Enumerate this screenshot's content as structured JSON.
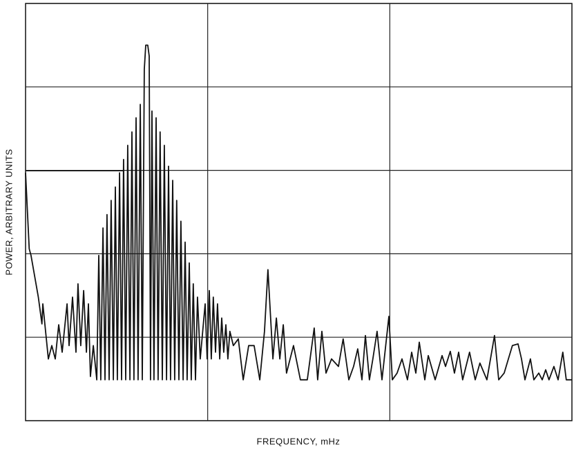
{
  "chart_data": {
    "type": "line",
    "xlabel": "FREQUENCY, mHz",
    "ylabel": "POWER, ARBITRARY UNITS",
    "xlim": [
      0,
      3
    ],
    "ylim": [
      0,
      5
    ],
    "xticks": [
      0,
      1,
      2,
      3
    ],
    "yticks": [
      0,
      1,
      2,
      3,
      4,
      5
    ],
    "grid": true,
    "color": "#111",
    "x": [
      0,
      0.02,
      0.03,
      0.05,
      0.07,
      0.09,
      0.095,
      0.125,
      0.144,
      0.163,
      0.182,
      0.201,
      0.228,
      0.239,
      0.258,
      0.277,
      0.288,
      0.303,
      0.319,
      0.334,
      0.345,
      0.356,
      0.372,
      0.391,
      0.402,
      0.413,
      0.425,
      0.436,
      0.447,
      0.459,
      0.47,
      0.482,
      0.493,
      0.504,
      0.516,
      0.527,
      0.538,
      0.55,
      0.561,
      0.573,
      0.584,
      0.595,
      0.607,
      0.618,
      0.63,
      0.641,
      0.652,
      0.66,
      0.671,
      0.679,
      0.686,
      0.694,
      0.705,
      0.717,
      0.728,
      0.739,
      0.751,
      0.762,
      0.774,
      0.785,
      0.796,
      0.808,
      0.819,
      0.83,
      0.842,
      0.853,
      0.865,
      0.876,
      0.887,
      0.899,
      0.91,
      0.921,
      0.933,
      0.944,
      0.959,
      0.986,
      0.997,
      1.009,
      1.02,
      1.031,
      1.043,
      1.054,
      1.066,
      1.077,
      1.088,
      1.1,
      1.111,
      1.122,
      1.141,
      1.168,
      1.195,
      1.225,
      1.255,
      1.286,
      1.312,
      1.331,
      1.358,
      1.377,
      1.396,
      1.415,
      1.433,
      1.471,
      1.509,
      1.547,
      1.585,
      1.604,
      1.627,
      1.65,
      1.68,
      1.718,
      1.744,
      1.775,
      1.801,
      1.824,
      1.847,
      1.866,
      1.888,
      1.907,
      1.93,
      1.957,
      1.995,
      2.014,
      2.04,
      2.067,
      2.097,
      2.12,
      2.143,
      2.162,
      2.192,
      2.211,
      2.249,
      2.287,
      2.306,
      2.332,
      2.355,
      2.378,
      2.4,
      2.438,
      2.469,
      2.495,
      2.533,
      2.575,
      2.598,
      2.628,
      2.651,
      2.673,
      2.704,
      2.723,
      2.742,
      2.772,
      2.791,
      2.818,
      2.837,
      2.856,
      2.874,
      2.901,
      2.924,
      2.95,
      2.969,
      3.0
    ],
    "values": [
      2.97,
      2.06,
      1.98,
      1.73,
      1.48,
      1.16,
      1.4,
      0.74,
      0.9,
      0.74,
      1.15,
      0.82,
      1.4,
      0.9,
      1.48,
      0.82,
      1.64,
      0.9,
      1.56,
      0.82,
      1.4,
      0.53,
      0.9,
      0.49,
      1.98,
      0.49,
      2.31,
      0.49,
      2.47,
      0.49,
      2.64,
      0.49,
      2.8,
      0.49,
      2.97,
      0.49,
      3.13,
      0.49,
      3.3,
      0.49,
      3.46,
      0.49,
      3.63,
      0.49,
      3.79,
      0.49,
      4.21,
      4.5,
      4.5,
      4.37,
      0.49,
      3.71,
      0.49,
      3.63,
      0.49,
      3.46,
      0.49,
      3.3,
      0.49,
      3.05,
      0.49,
      2.88,
      0.49,
      2.64,
      0.49,
      2.39,
      0.49,
      2.14,
      0.49,
      1.89,
      0.49,
      1.64,
      0.49,
      1.48,
      0.74,
      1.4,
      0.74,
      1.56,
      0.74,
      1.48,
      0.82,
      1.4,
      0.74,
      1.23,
      0.82,
      1.15,
      0.74,
      1.07,
      0.9,
      0.98,
      0.49,
      0.9,
      0.9,
      0.49,
      1.07,
      1.81,
      0.74,
      1.23,
      0.74,
      1.15,
      0.57,
      0.9,
      0.49,
      0.49,
      1.11,
      0.49,
      1.07,
      0.57,
      0.74,
      0.65,
      0.98,
      0.49,
      0.65,
      0.86,
      0.49,
      1.02,
      0.49,
      0.74,
      1.07,
      0.49,
      1.25,
      0.49,
      0.57,
      0.74,
      0.49,
      0.82,
      0.57,
      0.94,
      0.49,
      0.78,
      0.49,
      0.78,
      0.65,
      0.83,
      0.57,
      0.82,
      0.49,
      0.82,
      0.49,
      0.69,
      0.49,
      1.02,
      0.49,
      0.57,
      0.74,
      0.9,
      0.92,
      0.74,
      0.49,
      0.74,
      0.49,
      0.57,
      0.49,
      0.61,
      0.49,
      0.65,
      0.49,
      0.82,
      0.49,
      0.49
    ]
  }
}
